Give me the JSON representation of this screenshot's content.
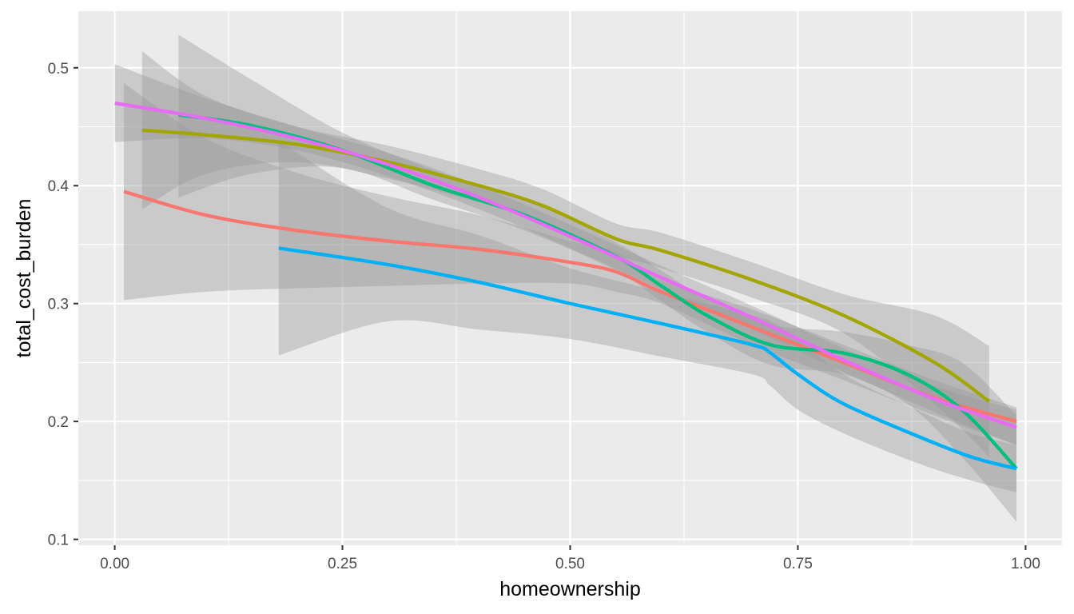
{
  "chart_data": {
    "type": "line",
    "title": "",
    "xlabel": "homeownership",
    "ylabel": "total_cost_burden",
    "xlim": [
      -0.04,
      1.04
    ],
    "ylim": [
      0.095,
      0.548
    ],
    "x_ticks": [
      0.0,
      0.25,
      0.5,
      0.75,
      1.0
    ],
    "x_tick_labels": [
      "0.00",
      "0.25",
      "0.50",
      "0.75",
      "1.00"
    ],
    "y_ticks": [
      0.1,
      0.2,
      0.3,
      0.4,
      0.5
    ],
    "y_tick_labels": [
      "0.1",
      "0.2",
      "0.3",
      "0.4",
      "0.5"
    ],
    "grid": true,
    "legend": "none",
    "colors": {
      "panel_background": "#ebebeb",
      "grid": "#ffffff",
      "ribbon": "#999999"
    },
    "series": [
      {
        "color": "#F8766D",
        "x": [
          0.01,
          0.1,
          0.2,
          0.3,
          0.4,
          0.5,
          0.55,
          0.6,
          0.7,
          0.8,
          0.9,
          0.99
        ],
        "y": [
          0.395,
          0.375,
          0.362,
          0.353,
          0.346,
          0.335,
          0.327,
          0.31,
          0.28,
          0.25,
          0.22,
          0.2
        ],
        "ymin": [
          0.303,
          0.31,
          0.313,
          0.315,
          0.317,
          0.317,
          0.31,
          0.3,
          0.265,
          0.235,
          0.205,
          0.18
        ],
        "ymax": [
          0.487,
          0.44,
          0.411,
          0.391,
          0.375,
          0.353,
          0.344,
          0.32,
          0.295,
          0.265,
          0.235,
          0.212
        ]
      },
      {
        "color": "#A3A500",
        "x": [
          0.03,
          0.1,
          0.2,
          0.3,
          0.4,
          0.47,
          0.55,
          0.6,
          0.7,
          0.8,
          0.9,
          0.96
        ],
        "y": [
          0.447,
          0.443,
          0.435,
          0.42,
          0.4,
          0.383,
          0.355,
          0.345,
          0.32,
          0.29,
          0.25,
          0.217
        ],
        "ymin": [
          0.38,
          0.41,
          0.42,
          0.406,
          0.386,
          0.37,
          0.342,
          0.33,
          0.305,
          0.275,
          0.215,
          0.17
        ],
        "ymax": [
          0.514,
          0.476,
          0.45,
          0.434,
          0.414,
          0.397,
          0.368,
          0.36,
          0.335,
          0.308,
          0.29,
          0.264
        ]
      },
      {
        "color": "#00BF7D",
        "x": [
          0.07,
          0.15,
          0.25,
          0.35,
          0.45,
          0.55,
          0.6,
          0.65,
          0.72,
          0.8,
          0.87,
          0.93,
          0.99
        ],
        "y": [
          0.46,
          0.451,
          0.43,
          0.4,
          0.375,
          0.34,
          0.315,
          0.29,
          0.265,
          0.258,
          0.24,
          0.21,
          0.16
        ],
        "ymin": [
          0.39,
          0.41,
          0.415,
          0.388,
          0.362,
          0.328,
          0.302,
          0.276,
          0.248,
          0.24,
          0.215,
          0.17,
          0.115
        ],
        "ymax": [
          0.528,
          0.49,
          0.445,
          0.413,
          0.388,
          0.352,
          0.328,
          0.304,
          0.282,
          0.276,
          0.265,
          0.25,
          0.205
        ]
      },
      {
        "color": "#00B0F6",
        "x": [
          0.18,
          0.3,
          0.4,
          0.5,
          0.6,
          0.7,
          0.72,
          0.75,
          0.8,
          0.88,
          0.94,
          0.99
        ],
        "y": [
          0.347,
          0.333,
          0.318,
          0.3,
          0.283,
          0.265,
          0.258,
          0.24,
          0.215,
          0.188,
          0.17,
          0.16
        ],
        "ymin": [
          0.256,
          0.285,
          0.278,
          0.27,
          0.255,
          0.24,
          0.23,
          0.21,
          0.19,
          0.165,
          0.15,
          0.14
        ],
        "ymax": [
          0.438,
          0.381,
          0.358,
          0.33,
          0.31,
          0.29,
          0.285,
          0.27,
          0.24,
          0.21,
          0.19,
          0.18
        ]
      },
      {
        "color": "#E76BF3",
        "x": [
          0.0,
          0.1,
          0.2,
          0.3,
          0.4,
          0.5,
          0.6,
          0.7,
          0.8,
          0.9,
          0.99
        ],
        "y": [
          0.47,
          0.457,
          0.44,
          0.418,
          0.39,
          0.357,
          0.322,
          0.288,
          0.252,
          0.219,
          0.195
        ],
        "ymin": [
          0.437,
          0.44,
          0.43,
          0.408,
          0.38,
          0.347,
          0.312,
          0.278,
          0.242,
          0.208,
          0.18
        ],
        "ymax": [
          0.503,
          0.474,
          0.45,
          0.428,
          0.4,
          0.367,
          0.332,
          0.298,
          0.262,
          0.23,
          0.21
        ]
      }
    ]
  }
}
